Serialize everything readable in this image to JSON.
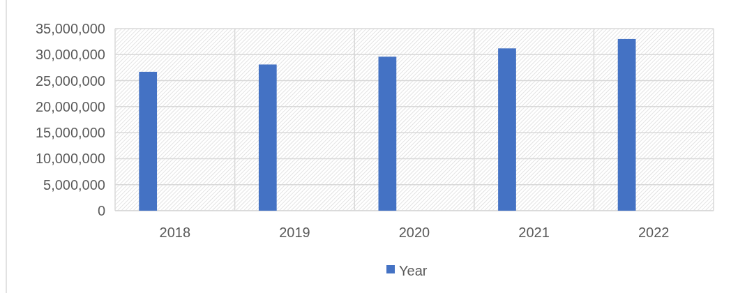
{
  "chart_data": {
    "type": "bar",
    "categories": [
      "2018",
      "2019",
      "2020",
      "2021",
      "2022"
    ],
    "series": [
      {
        "name": "Year",
        "color": "#4472c4",
        "values": [
          26700000,
          28100000,
          29600000,
          31200000,
          33000000
        ]
      }
    ],
    "ylim": [
      0,
      35000000
    ],
    "yticks": [
      {
        "value": 0,
        "label": "0"
      },
      {
        "value": 5000000,
        "label": "5,000,000"
      },
      {
        "value": 10000000,
        "label": "10,000,000"
      },
      {
        "value": 15000000,
        "label": "15,000,000"
      },
      {
        "value": 20000000,
        "label": "20,000,000"
      },
      {
        "value": 25000000,
        "label": "25,000,000"
      },
      {
        "value": 30000000,
        "label": "30,000,000"
      },
      {
        "value": 35000000,
        "label": "35,000,000"
      }
    ],
    "grid": true,
    "legend": "bottom"
  }
}
